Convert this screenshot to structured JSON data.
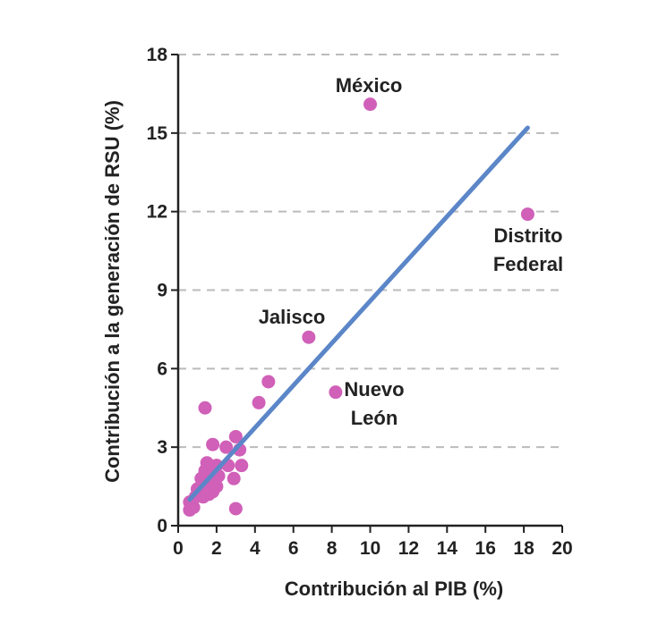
{
  "chart_data": {
    "type": "scatter",
    "xlabel": "Contribución al PIB (%)",
    "ylabel": "Contribución a la generación de RSU (%)",
    "xlim": [
      0,
      20
    ],
    "ylim": [
      0,
      18
    ],
    "x_ticks": [
      "0",
      "2",
      "4",
      "6",
      "8",
      "10",
      "12",
      "14",
      "16",
      "18",
      "20"
    ],
    "y_ticks": [
      "0",
      "3",
      "6",
      "9",
      "12",
      "15",
      "18"
    ],
    "grid": "horizontal-dashed",
    "colors": {
      "points": "#d060b8",
      "trendline": "#5b86c8",
      "grid": "#bbbbbb",
      "axis": "#222222"
    },
    "points": [
      {
        "x": 10.0,
        "y": 16.1,
        "label_lines": [
          "México"
        ]
      },
      {
        "x": 18.2,
        "y": 11.9,
        "label_lines": [
          "Distrito",
          "Federal"
        ]
      },
      {
        "x": 6.8,
        "y": 7.2,
        "label_lines": [
          "Jalisco"
        ]
      },
      {
        "x": 8.2,
        "y": 5.1,
        "label_lines": [
          "Nuevo",
          "León"
        ]
      },
      {
        "x": 4.7,
        "y": 5.5
      },
      {
        "x": 4.2,
        "y": 4.7
      },
      {
        "x": 1.4,
        "y": 4.5
      },
      {
        "x": 3.0,
        "y": 3.4
      },
      {
        "x": 1.8,
        "y": 3.1
      },
      {
        "x": 2.5,
        "y": 3.0
      },
      {
        "x": 3.2,
        "y": 2.9
      },
      {
        "x": 1.5,
        "y": 2.4
      },
      {
        "x": 2.0,
        "y": 2.3
      },
      {
        "x": 2.6,
        "y": 2.3
      },
      {
        "x": 3.3,
        "y": 2.3
      },
      {
        "x": 1.4,
        "y": 2.1
      },
      {
        "x": 1.7,
        "y": 2.0
      },
      {
        "x": 2.1,
        "y": 1.9
      },
      {
        "x": 1.2,
        "y": 1.8
      },
      {
        "x": 2.9,
        "y": 1.8
      },
      {
        "x": 1.6,
        "y": 1.6
      },
      {
        "x": 2.0,
        "y": 1.5
      },
      {
        "x": 1.0,
        "y": 1.4
      },
      {
        "x": 1.4,
        "y": 1.3
      },
      {
        "x": 1.8,
        "y": 1.3
      },
      {
        "x": 0.9,
        "y": 1.1
      },
      {
        "x": 1.3,
        "y": 1.1
      },
      {
        "x": 1.6,
        "y": 1.2
      },
      {
        "x": 0.6,
        "y": 0.9
      },
      {
        "x": 0.8,
        "y": 0.7
      },
      {
        "x": 0.6,
        "y": 0.6
      },
      {
        "x": 3.0,
        "y": 0.65
      }
    ],
    "trendline": {
      "x": [
        0.6,
        18.2
      ],
      "y": [
        1.0,
        15.2
      ]
    }
  }
}
